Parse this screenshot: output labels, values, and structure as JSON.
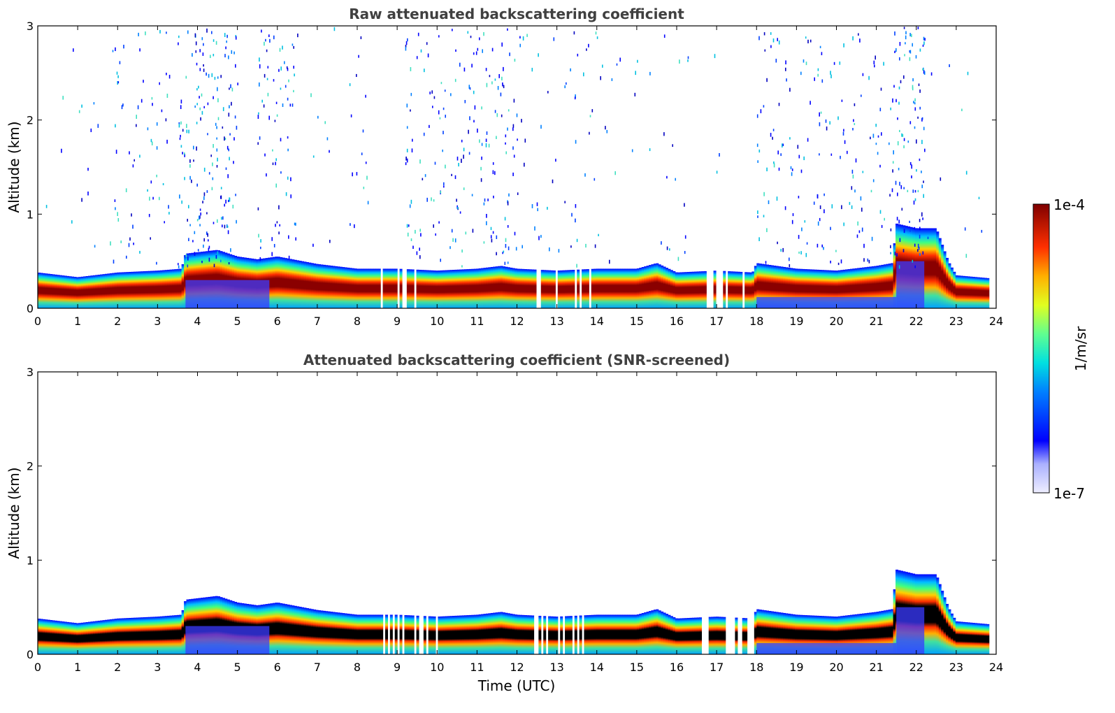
{
  "chart_data": [
    {
      "type": "heatmap",
      "title": "Raw attenuated backscattering coefficient",
      "xlabel": "",
      "ylabel": "Altitude (km)",
      "xlim": [
        0,
        24
      ],
      "ylim": [
        0,
        3
      ],
      "xticks": [
        0,
        1,
        2,
        3,
        4,
        5,
        6,
        7,
        8,
        9,
        10,
        11,
        12,
        13,
        14,
        15,
        16,
        17,
        18,
        19,
        20,
        21,
        22,
        23,
        24
      ],
      "yticks": [
        0,
        1,
        2,
        3
      ],
      "screened": false,
      "layer_top_km": [
        [
          0,
          0.38
        ],
        [
          1,
          0.33
        ],
        [
          2,
          0.38
        ],
        [
          3,
          0.4
        ],
        [
          3.6,
          0.42
        ],
        [
          3.7,
          0.58
        ],
        [
          4.5,
          0.62
        ],
        [
          5,
          0.55
        ],
        [
          5.5,
          0.52
        ],
        [
          6,
          0.55
        ],
        [
          7,
          0.47
        ],
        [
          8,
          0.42
        ],
        [
          9,
          0.42
        ],
        [
          10,
          0.4
        ],
        [
          11,
          0.42
        ],
        [
          11.6,
          0.45
        ],
        [
          12,
          0.42
        ],
        [
          13,
          0.4
        ],
        [
          14,
          0.42
        ],
        [
          15,
          0.42
        ],
        [
          15.5,
          0.48
        ],
        [
          16,
          0.38
        ],
        [
          17,
          0.4
        ],
        [
          17.9,
          0.38
        ],
        [
          18,
          0.48
        ],
        [
          19,
          0.42
        ],
        [
          20,
          0.4
        ],
        [
          21,
          0.45
        ],
        [
          21.4,
          0.48
        ],
        [
          21.5,
          0.9
        ],
        [
          22,
          0.85
        ],
        [
          22.5,
          0.85
        ],
        [
          22.8,
          0.5
        ],
        [
          23,
          0.35
        ],
        [
          23.8,
          0.32
        ]
      ],
      "core_km": [
        [
          0,
          0.22
        ],
        [
          1,
          0.2
        ],
        [
          2,
          0.25
        ],
        [
          3,
          0.26
        ],
        [
          3.6,
          0.27
        ],
        [
          3.7,
          0.45
        ],
        [
          4.5,
          0.48
        ],
        [
          5,
          0.3
        ],
        [
          5.5,
          0.3
        ],
        [
          6,
          0.42
        ],
        [
          7,
          0.35
        ],
        [
          8,
          0.28
        ],
        [
          9,
          0.25
        ],
        [
          10,
          0.25
        ],
        [
          11,
          0.27
        ],
        [
          12,
          0.27
        ],
        [
          13,
          0.25
        ],
        [
          14,
          0.25
        ],
        [
          15,
          0.27
        ],
        [
          15.5,
          0.3
        ],
        [
          16,
          0.2
        ],
        [
          17,
          0.25
        ],
        [
          18,
          0.28
        ],
        [
          19,
          0.27
        ],
        [
          20,
          0.26
        ],
        [
          21,
          0.27
        ],
        [
          21.4,
          0.28
        ],
        [
          21.5,
          0.72
        ],
        [
          22,
          0.7
        ],
        [
          22.5,
          0.4
        ],
        [
          23,
          0.12
        ],
        [
          23.8,
          0.12
        ]
      ]
    },
    {
      "type": "heatmap",
      "title": "Attenuated backscattering coefficient (SNR-screened)",
      "xlabel": "Time (UTC)",
      "ylabel": "Altitude (km)",
      "xlim": [
        0,
        24
      ],
      "ylim": [
        0,
        3
      ],
      "xticks": [
        0,
        1,
        2,
        3,
        4,
        5,
        6,
        7,
        8,
        9,
        10,
        11,
        12,
        13,
        14,
        15,
        16,
        17,
        18,
        19,
        20,
        21,
        22,
        23,
        24
      ],
      "yticks": [
        0,
        1,
        2,
        3
      ],
      "screened": true
    }
  ],
  "colorbar": {
    "label": "1/m/sr",
    "min_label": "1e-7",
    "max_label": "1e-4",
    "scale": "log",
    "min": 1e-07,
    "max": 0.0001
  },
  "colors": {
    "title": "#404040",
    "saturated": "#7f0000",
    "screened_saturated": "#000000"
  }
}
